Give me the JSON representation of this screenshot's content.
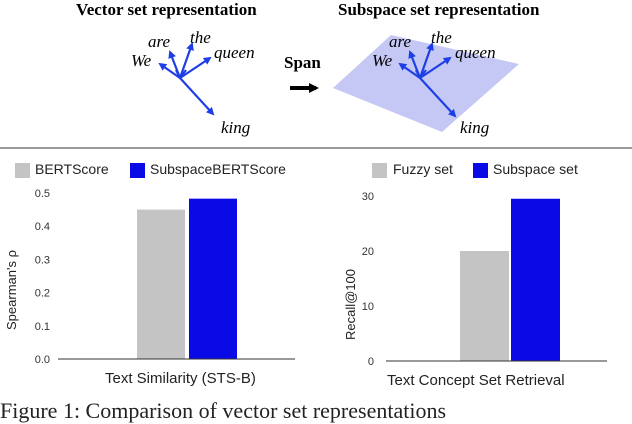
{
  "top": {
    "left_title": "Vector set representation",
    "right_title": "Subspace set representation",
    "span_label": "Span",
    "words": [
      "We",
      "are",
      "the",
      "queen",
      "king"
    ],
    "arrow_color": "#1f3fe6",
    "plane_color": "#c5c8f5"
  },
  "divider_color": "#999999",
  "chart_data": [
    {
      "type": "bar",
      "legend": [
        "BERTScore",
        "SubspaceBERTScore"
      ],
      "colors": [
        "#c4c4c4",
        "#0a0ae6"
      ],
      "series": [
        {
          "name": "BERTScore",
          "values": [
            0.45
          ]
        },
        {
          "name": "SubspaceBERTScore",
          "values": [
            0.483
          ]
        }
      ],
      "categories": [
        "Text Similarity (STS-B)"
      ],
      "xlabel": "Text Similarity (STS-B)",
      "ylabel": "Spearman's ρ",
      "ylim": [
        0,
        0.5
      ],
      "yticks": [
        "0.0",
        "0.1",
        "0.2",
        "0.3",
        "0.4",
        "0.5"
      ],
      "grid": false,
      "legend_position": "top"
    },
    {
      "type": "bar",
      "legend": [
        "Fuzzy set",
        "Subspace set"
      ],
      "colors": [
        "#c4c4c4",
        "#0a0ae6"
      ],
      "series": [
        {
          "name": "Fuzzy set",
          "values": [
            20
          ]
        },
        {
          "name": "Subspace set",
          "values": [
            29.5
          ]
        }
      ],
      "categories": [
        "Text Concept Set Retrieval"
      ],
      "xlabel": "Text Concept Set Retrieval",
      "ylabel": "Recall@100",
      "ylim": [
        0,
        30
      ],
      "yticks": [
        "0",
        "10",
        "20",
        "30"
      ],
      "grid": false,
      "legend_position": "top"
    }
  ],
  "caption": "Figure 1:  Comparison of vector set representations"
}
